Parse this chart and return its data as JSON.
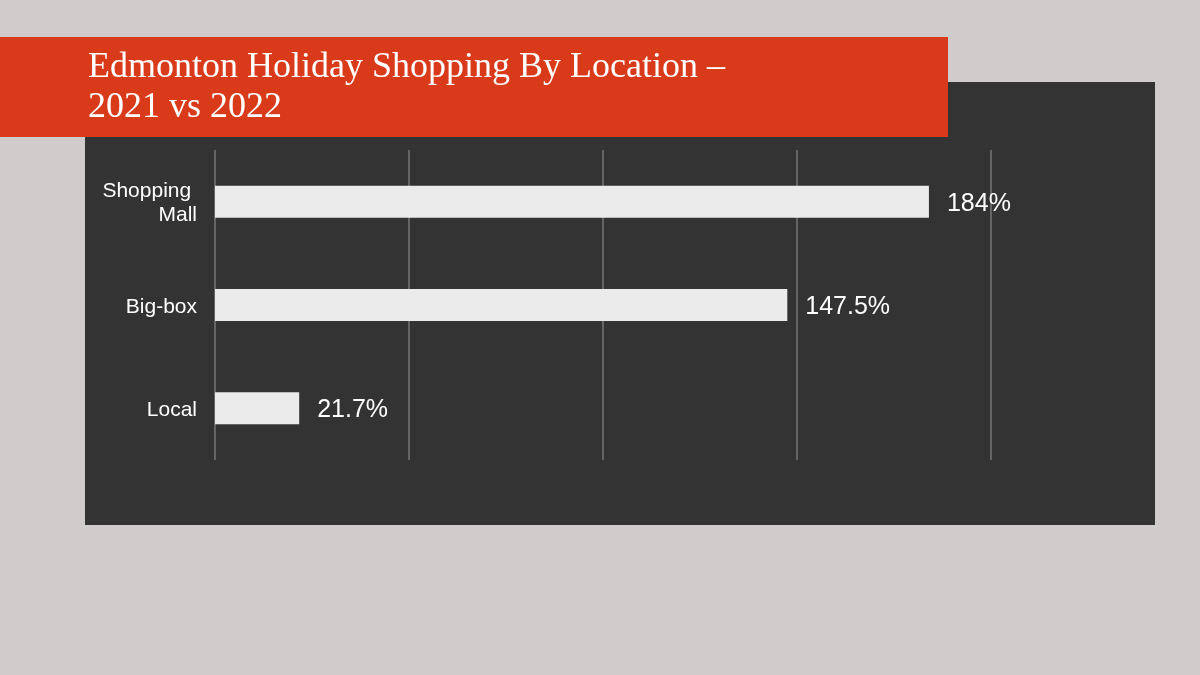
{
  "chart_data": {
    "type": "bar",
    "orientation": "horizontal",
    "title": "Edmonton Holiday Shopping By Location – 2021 vs 2022",
    "categories": [
      "Shopping Mall",
      "Big-box",
      "Local"
    ],
    "values": [
      184,
      147.5,
      21.7
    ],
    "color": "#ebebeb",
    "value_labels": [
      "184%",
      "147.5%",
      "21.7%"
    ],
    "xlim": [
      0,
      200
    ],
    "xticks": [
      {
        "value": 0,
        "label": null
      },
      {
        "value": 50,
        "label": null
      },
      {
        "value": 100,
        "label": null
      },
      {
        "value": 150,
        "label": null
      },
      {
        "value": 200,
        "label": null
      }
    ],
    "grid": "x",
    "tick_labels": "y"
  }
}
